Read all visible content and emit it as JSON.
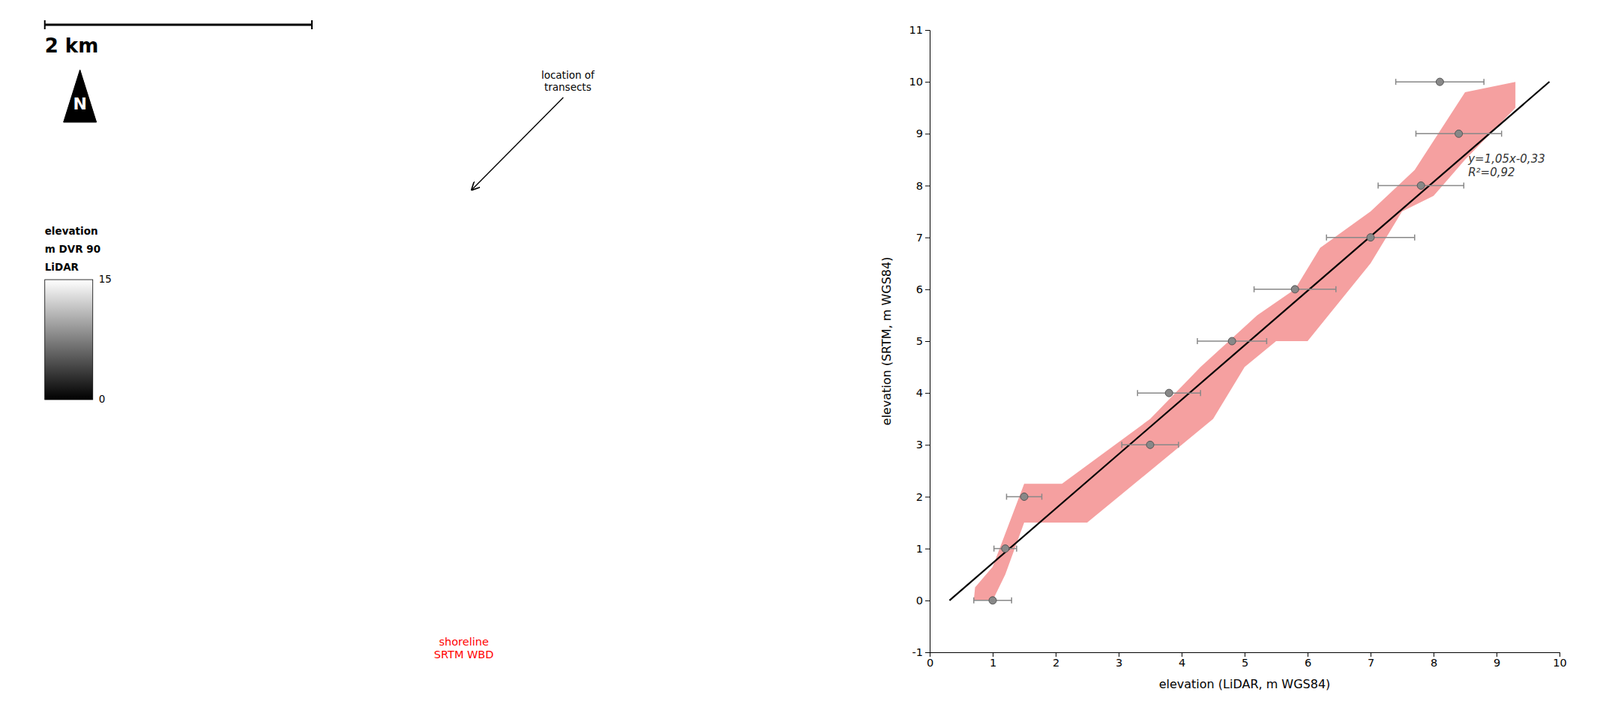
{
  "chart_data": {
    "type": "scatter",
    "xlabel": "elevation (LiDAR, m WGS84)",
    "ylabel": "elevation (SRTM, m WGS84)",
    "x": [
      1.0,
      1.2,
      1.5,
      3.5,
      3.8,
      4.8,
      5.8,
      7.0,
      7.8,
      8.4,
      8.1
    ],
    "values": [
      0.0,
      1.0,
      2.0,
      3.0,
      4.0,
      5.0,
      6.0,
      7.0,
      8.0,
      9.0,
      10.0
    ],
    "xerr": [
      0.3,
      0.18,
      0.28,
      0.45,
      0.5,
      0.55,
      0.65,
      0.7,
      0.68,
      0.68,
      0.7
    ],
    "color": "#888888",
    "fit_line": {
      "x": [
        0.314,
        9.84
      ],
      "y": [
        -0.0003,
        10.002
      ],
      "color": "#000000"
    },
    "band": {
      "x": [
        0.72,
        1.0,
        1.5,
        2.1,
        3.5,
        4.3,
        5.2,
        5.8,
        6.2,
        7.0,
        7.7,
        8.5,
        9.3,
        9.3,
        8.5,
        8.0,
        7.5,
        7.0,
        6.0,
        5.5,
        5.0,
        4.5,
        3.5,
        3.0,
        2.5,
        1.5,
        1.2,
        1.0,
        0.7
      ],
      "y": [
        0.25,
        0.65,
        2.25,
        2.25,
        3.5,
        4.5,
        5.5,
        6.0,
        6.8,
        7.5,
        8.3,
        9.8,
        10.0,
        9.5,
        8.5,
        7.8,
        7.5,
        6.5,
        5.0,
        5.0,
        4.5,
        3.5,
        2.5,
        2.0,
        1.5,
        1.5,
        0.5,
        0.0,
        0.0
      ],
      "color": "#f5a0a0"
    },
    "annotations": [
      {
        "text": "y=1,05x-0,33\nR²=0,92"
      },
      {
        "text": "2 km"
      },
      {
        "text": "N"
      },
      {
        "text": "elevation"
      },
      {
        "text": "m DVR 90"
      },
      {
        "text": "LiDAR"
      },
      {
        "text": "shoreline\nSRTM WBD",
        "color": "red"
      },
      {
        "text": "location of\ntransects"
      }
    ],
    "colorbar_lim": [
      0,
      15
    ],
    "colorbar_ticks": [
      0,
      15
    ],
    "xlim": [
      0,
      10
    ],
    "ylim": [
      -1,
      11
    ],
    "xticks": [
      0,
      1,
      2,
      3,
      4,
      5,
      6,
      7,
      8,
      9,
      10
    ],
    "yticks": [
      -1,
      0,
      1,
      2,
      3,
      4,
      5,
      6,
      7,
      8,
      9,
      10,
      11
    ],
    "grid": false
  }
}
